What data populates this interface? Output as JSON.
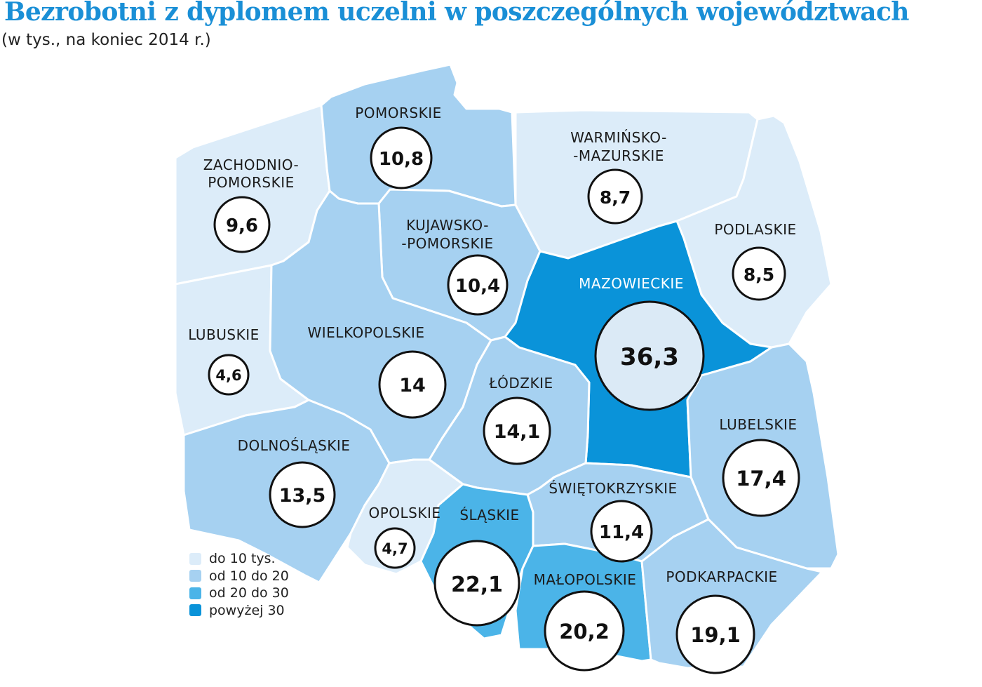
{
  "title": "Bezrobotni z dyplomem uczelni w poszczególnych województwach",
  "subtitle": "(w tys., na koniec 2014 r.)",
  "colors": {
    "lt10": "#dcecf9",
    "10to20": "#a6d1f1",
    "20to30": "#4bb4e8",
    "gt30": "#0a93d9"
  },
  "legend": [
    {
      "label": "do 10 tys.",
      "color": "#dcecf9"
    },
    {
      "label": "od 10 do 20",
      "color": "#a6d1f1"
    },
    {
      "label": "od 20 do 30",
      "color": "#4bb4e8"
    },
    {
      "label": "powyżej 30",
      "color": "#0a93d9"
    }
  ],
  "regions": {
    "zachodniopomorskie": {
      "name1": "ZACHODNIO-",
      "name2": "POMORSKIE",
      "value": "9,6"
    },
    "pomorskie": {
      "name1": "POMORSKIE",
      "value": "10,8"
    },
    "warminsko": {
      "name1": "WARMIŃSKO-",
      "name2": "-MAZURSKIE",
      "value": "8,7"
    },
    "podlaskie": {
      "name1": "PODLASKIE",
      "value": "8,5"
    },
    "kujawsko": {
      "name1": "KUJAWSKO-",
      "name2": "-POMORSKIE",
      "value": "10,4"
    },
    "mazowieckie": {
      "name1": "MAZOWIECKIE",
      "value": "36,3"
    },
    "lubuskie": {
      "name1": "LUBUSKIE",
      "value": "4,6"
    },
    "wielkopolskie": {
      "name1": "WIELKOPOLSKIE",
      "value": "14"
    },
    "lodzkie": {
      "name1": "ŁÓDZKIE",
      "value": "14,1"
    },
    "lubelskie": {
      "name1": "LUBELSKIE",
      "value": "17,4"
    },
    "dolnoslaskie": {
      "name1": "DOLNOŚLĄSKIE",
      "value": "13,5"
    },
    "swietokrzyskie": {
      "name1": "ŚWIĘTOKRZYSKIE",
      "value": "11,4"
    },
    "opolskie": {
      "name1": "OPOLSKIE",
      "value": "4,7"
    },
    "slaskie": {
      "name1": "ŚLĄSKIE",
      "value": "22,1"
    },
    "malopolskie": {
      "name1": "MAŁOPOLSKIE",
      "value": "20,2"
    },
    "podkarpackie": {
      "name1": "PODKARPACKIE",
      "value": "19,1"
    }
  }
}
